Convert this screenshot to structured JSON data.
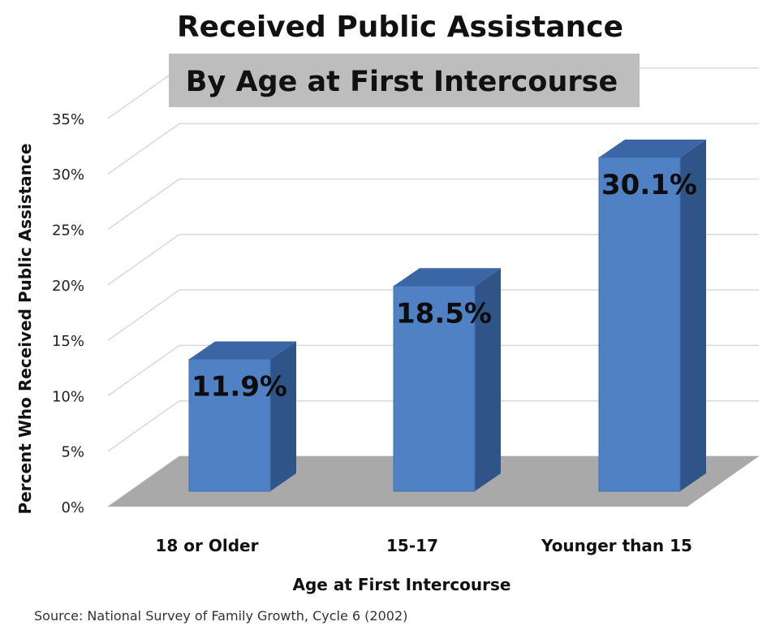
{
  "chart_data": {
    "type": "bar",
    "title": "Received Public Assistance",
    "subtitle": "By Age at First Intercourse",
    "xlabel": "Age at First Intercourse",
    "ylabel": "Percent Who Received Public Assistance",
    "categories": [
      "18 or Older",
      "15-17",
      "Younger than 15"
    ],
    "values": [
      11.9,
      18.5,
      30.1
    ],
    "data_labels": [
      "11.9%",
      "18.5%",
      "30.1%"
    ],
    "ylim": [
      0,
      35
    ],
    "y_ticks": [
      "0%",
      "5%",
      "10%",
      "15%",
      "20%",
      "25%",
      "30%",
      "35%"
    ],
    "grid": true,
    "three_d": true,
    "source": "Source: National Survey of Family Growth, Cycle 6 (2002)",
    "colors": {
      "bar_front": "#4f81c4",
      "bar_top": "#3a66a6",
      "bar_side": "#2f5487",
      "floor": "#a9a9a9",
      "subtitle_box": "#bdbdbd"
    }
  }
}
